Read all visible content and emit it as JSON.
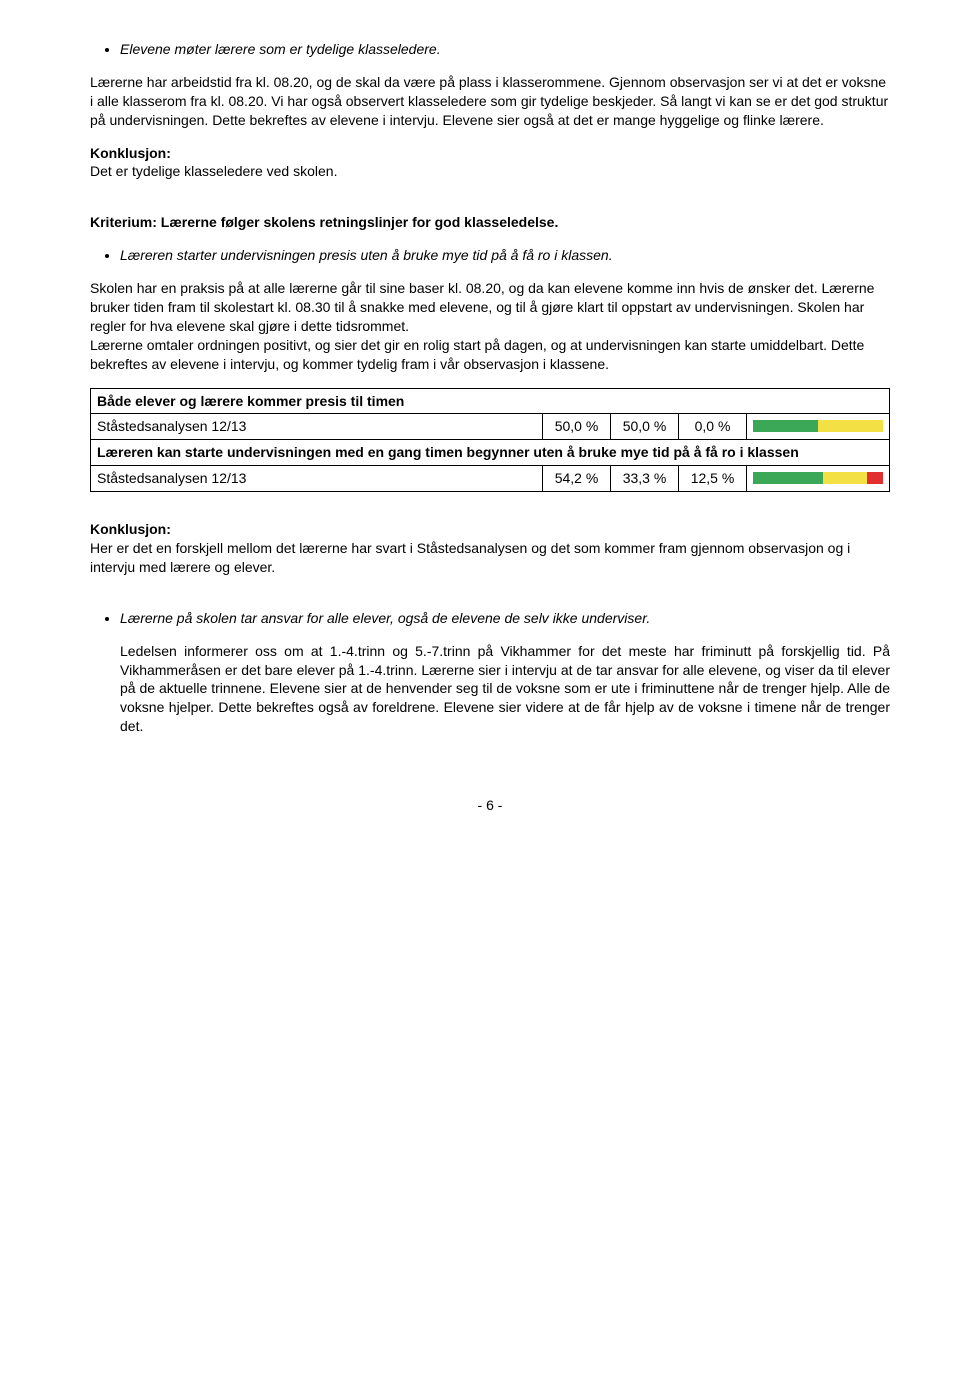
{
  "bullet1": "Elevene møter lærere som er tydelige klasseledere.",
  "para1": "Lærerne har arbeidstid fra kl. 08.20, og de skal da være på plass i klasserommene. Gjennom observasjon ser vi at det er voksne i alle klasserom fra kl. 08.20. Vi har også observert klasseledere som gir tydelige beskjeder. Så langt vi kan se er det god struktur på undervisningen. Dette bekreftes av elevene i intervju. Elevene sier også at det er mange hyggelige og flinke lærere.",
  "konklusjon_label": "Konklusjon:",
  "konklusjon1": "Det er tydelige klasseledere ved skolen.",
  "kriterium_heading": "Kriterium: Lærerne følger skolens retningslinjer for god klasseledelse.",
  "bullet2": "Læreren starter undervisningen presis uten å bruke mye tid på å få ro i klassen.",
  "para2": "Skolen har en praksis på at alle lærerne går til sine baser kl. 08.20, og da kan elevene komme inn hvis de ønsker det. Lærerne bruker tiden fram til skolestart kl. 08.30 til å snakke med elevene, og til å gjøre klart til oppstart av undervisningen. Skolen har regler for hva elevene skal gjøre i dette tidsrommet.",
  "para3": "Lærerne omtaler ordningen positivt, og sier det gir en rolig start på dagen, og at undervisningen kan starte umiddelbart. Dette bekreftes av elevene i intervju, og kommer tydelig fram i vår observasjon i klassene.",
  "table": {
    "row1_header": "Både elever og lærere kommer presis til timen",
    "row1_label": "Ståstedsanalysen 12/13",
    "row1_vals": [
      "50,0 %",
      "50,0 %",
      "0,0 %"
    ],
    "row1_widths": [
      50,
      50,
      0
    ],
    "row2_header": "Læreren kan starte undervisningen med en gang timen begynner uten å bruke mye tid på å få ro i klassen",
    "row2_label": "Ståstedsanalysen 12/13",
    "row2_vals": [
      "54,2 %",
      "33,3 %",
      "12,5 %"
    ],
    "row2_widths": [
      54.2,
      33.3,
      12.5
    ],
    "colors": {
      "green": "#3ba858",
      "yellow": "#f3e044",
      "red": "#e22e2e"
    }
  },
  "konklusjon2": "Her er det en forskjell mellom det lærerne har svart i Ståstedsanalysen og det som kommer fram gjennom observasjon og i intervju med lærere og elever.",
  "bullet3": "Lærerne på skolen tar ansvar for alle elever, også de elevene de selv ikke underviser.",
  "para4": "Ledelsen informerer oss om at 1.-4.trinn og 5.-7.trinn på Vikhammer for det meste har friminutt på forskjellig tid. På Vikhammeråsen er det bare elever på 1.-4.trinn. Lærerne sier i intervju at de tar ansvar for alle elevene, og viser da til elever på de aktuelle trinnene. Elevene sier at de henvender seg til de voksne som er ute i friminuttene når de trenger hjelp. Alle de voksne hjelper. Dette bekreftes også av foreldrene. Elevene sier videre at de får hjelp av de voksne i timene når de trenger det.",
  "page": "- 6 -"
}
